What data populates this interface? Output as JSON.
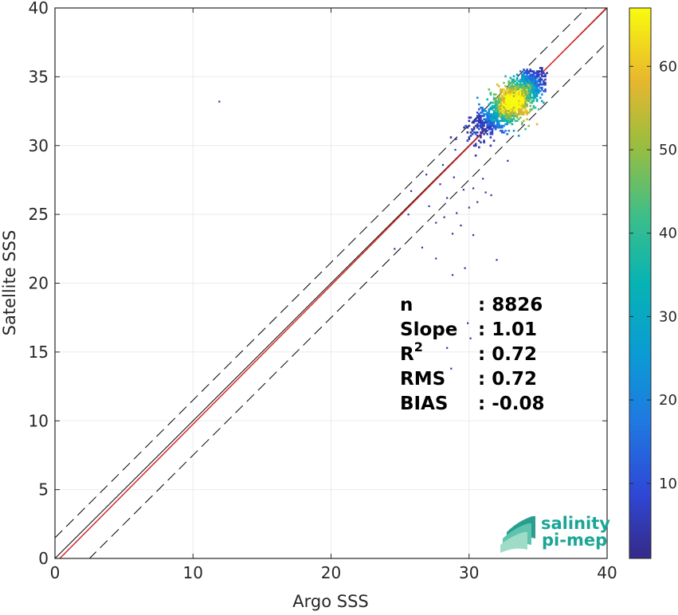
{
  "chart_data": {
    "type": "scatter",
    "subtype": "density-scatter",
    "xlabel": "Argo SSS",
    "ylabel": "Satellite SSS",
    "xlim": [
      0,
      40
    ],
    "ylim": [
      0,
      40
    ],
    "xticks": [
      0,
      10,
      20,
      30,
      40
    ],
    "yticks": [
      0,
      5,
      10,
      15,
      20,
      25,
      30,
      35,
      40
    ],
    "grid": true,
    "reference_lines": [
      {
        "name": "1:1",
        "slope": 1,
        "intercept": 0,
        "color": "#000000",
        "style": "solid"
      },
      {
        "name": "regression",
        "slope": 1.01,
        "intercept": -0.35,
        "color": "#d62728",
        "style": "solid"
      },
      {
        "name": "upper-envelope",
        "slope": 1,
        "intercept": 1.5,
        "color": "#000000",
        "style": "dashed"
      },
      {
        "name": "lower-envelope",
        "slope": 1,
        "intercept": -2.5,
        "color": "#000000",
        "style": "dashed"
      }
    ],
    "density_core": {
      "center": [
        33.2,
        33.2
      ],
      "spread_along": 1.4,
      "spread_across": 0.38
    },
    "outliers": [
      {
        "x": 11.9,
        "y": 33.2
      },
      {
        "x": 24.6,
        "y": 22.5
      },
      {
        "x": 26.6,
        "y": 22.6
      },
      {
        "x": 27.6,
        "y": 21.8
      },
      {
        "x": 28.8,
        "y": 20.6
      },
      {
        "x": 29.7,
        "y": 21.1
      },
      {
        "x": 30.3,
        "y": 23.5
      },
      {
        "x": 32.0,
        "y": 21.7
      },
      {
        "x": 25.8,
        "y": 26.7
      },
      {
        "x": 27.1,
        "y": 25.6
      },
      {
        "x": 27.6,
        "y": 24.4
      },
      {
        "x": 28.2,
        "y": 24.8
      },
      {
        "x": 28.8,
        "y": 23.6
      },
      {
        "x": 29.1,
        "y": 25.1
      },
      {
        "x": 29.4,
        "y": 24.2
      },
      {
        "x": 30.0,
        "y": 25.5
      },
      {
        "x": 30.6,
        "y": 25.9
      },
      {
        "x": 31.2,
        "y": 26.6
      },
      {
        "x": 31.6,
        "y": 26.4
      },
      {
        "x": 28.4,
        "y": 26.2
      },
      {
        "x": 27.9,
        "y": 27.2
      },
      {
        "x": 28.9,
        "y": 27.7
      },
      {
        "x": 30.3,
        "y": 26.9
      },
      {
        "x": 29.6,
        "y": 26.8
      },
      {
        "x": 26.9,
        "y": 27.9
      },
      {
        "x": 28.1,
        "y": 28.6
      },
      {
        "x": 32.8,
        "y": 28.9
      },
      {
        "x": 31.0,
        "y": 27.6
      },
      {
        "x": 28.4,
        "y": 15.3
      },
      {
        "x": 29.9,
        "y": 17.1
      },
      {
        "x": 30.1,
        "y": 16.0
      },
      {
        "x": 28.7,
        "y": 13.8
      },
      {
        "x": 28.9,
        "y": 16.8
      },
      {
        "x": 25.6,
        "y": 25.0
      },
      {
        "x": 29.0,
        "y": 29.7
      },
      {
        "x": 30.2,
        "y": 31.2
      }
    ],
    "colorbar": {
      "min": 1,
      "max": 67,
      "ticks": [
        10,
        20,
        30,
        40,
        50,
        60
      ],
      "colormap": "parula"
    },
    "stats": [
      {
        "label": "n",
        "value": ": 8826"
      },
      {
        "label": "Slope",
        "value": ": 1.01"
      },
      {
        "label": "R",
        "sup": "2",
        "value": ": 0.72"
      },
      {
        "label": "RMS",
        "value": ": 0.72"
      },
      {
        "label": "BIAS",
        "value": ": -0.08"
      }
    ]
  },
  "logo": {
    "line1": "salinity",
    "line2": "pi-mep"
  },
  "colors": {
    "regression": "#d62728",
    "grid": "#ebebeb",
    "logo_text": "#1aa595",
    "axis": "#262626"
  }
}
